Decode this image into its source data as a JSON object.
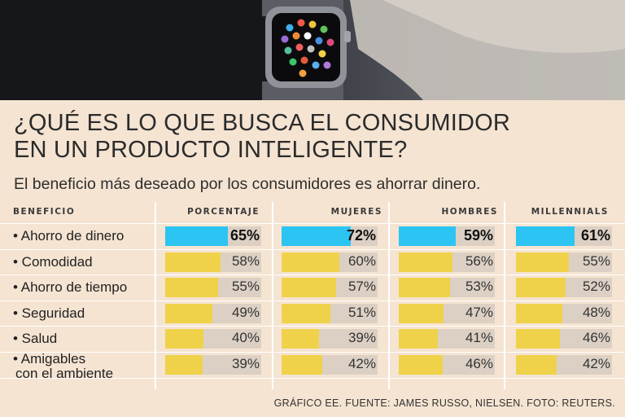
{
  "title_line1": "¿QUÉ ES LO QUE BUSCA EL CONSUMIDOR",
  "title_line2": "EN UN PRODUCTO INTELIGENTE?",
  "subtitle": "El beneficio más deseado por los consumidores es ahorrar dinero.",
  "source": "GRÁFICO EE. FUENTE: JAMES RUSSO, NIELSEN. FOTO: REUTERS.",
  "colors": {
    "highlight": "#2cc4f2",
    "bar": "#efd24a",
    "track": "#dcd0c4",
    "background": "#f5e4d2"
  },
  "chart_data": {
    "type": "bar",
    "category_header": "BENEFICIO",
    "categories": [
      "Ahorro de dinero",
      "Comodidad",
      "Ahorro de tiempo",
      "Seguridad",
      "Salud",
      "Amigables con el ambiente"
    ],
    "series": [
      {
        "name": "PORCENTAJE",
        "values": [
          65,
          58,
          55,
          49,
          40,
          39
        ]
      },
      {
        "name": "MUJERES",
        "values": [
          72,
          60,
          57,
          51,
          39,
          42
        ]
      },
      {
        "name": "HOMBRES",
        "values": [
          59,
          56,
          53,
          47,
          41,
          46
        ]
      },
      {
        "name": "MILLENNIALS",
        "values": [
          61,
          55,
          52,
          48,
          46,
          42
        ]
      }
    ],
    "unit": "%",
    "ylim": [
      0,
      100
    ]
  }
}
